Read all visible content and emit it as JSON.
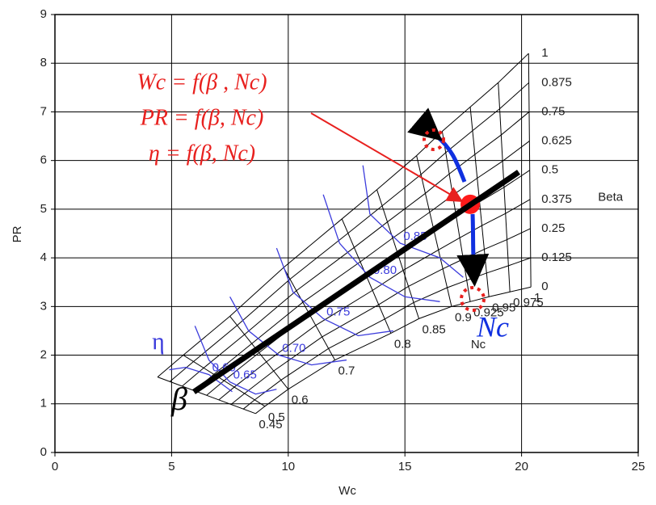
{
  "chart_data": {
    "type": "map",
    "x_label": "Wc",
    "y_label": "PR",
    "xlim": [
      0,
      25
    ],
    "ylim": [
      0,
      9
    ],
    "xticks": [
      0,
      5,
      10,
      15,
      20,
      25
    ],
    "yticks": [
      0,
      1,
      2,
      3,
      4,
      5,
      6,
      7,
      8,
      9
    ],
    "grid": true,
    "speed_label": "Nc",
    "speed_symbol": "Nc",
    "speed_color": "#000000",
    "speed_lines": [
      {
        "name": "0.45",
        "x": [
          8.6,
          4.4
        ],
        "y": [
          0.8,
          1.55
        ]
      },
      {
        "name": "0.5",
        "x": [
          9.0,
          5.5
        ],
        "y": [
          0.95,
          2.0
        ]
      },
      {
        "name": "0.6",
        "x": [
          10.0,
          7.5
        ],
        "y": [
          1.3,
          2.8
        ]
      },
      {
        "name": "0.7",
        "x": [
          12.0,
          9.8
        ],
        "y": [
          1.9,
          3.8
        ]
      },
      {
        "name": "0.8",
        "x": [
          14.4,
          12.3
        ],
        "y": [
          2.45,
          4.8
        ]
      },
      {
        "name": "0.85",
        "x": [
          15.6,
          13.8
        ],
        "y": [
          2.75,
          5.4
        ]
      },
      {
        "name": "0.9",
        "x": [
          17.0,
          15.5
        ],
        "y": [
          3.0,
          6.1
        ]
      },
      {
        "name": "0.925",
        "x": [
          17.8,
          16.6
        ],
        "y": [
          3.1,
          6.6
        ]
      },
      {
        "name": "0.95",
        "x": [
          18.6,
          17.8
        ],
        "y": [
          3.2,
          7.1
        ]
      },
      {
        "name": "0.975",
        "x": [
          19.5,
          19.0
        ],
        "y": [
          3.3,
          7.6
        ]
      },
      {
        "name": "1",
        "x": [
          20.4,
          20.3
        ],
        "y": [
          3.4,
          8.2
        ]
      }
    ],
    "beta_label": "Beta",
    "beta_values": [
      0,
      0.125,
      0.25,
      0.375,
      0.5,
      0.625,
      0.75,
      0.875,
      1
    ],
    "efficiency_symbol": "η",
    "efficiency_color": "#3c3cdc",
    "efficiency_contours": [
      {
        "name": "0.60",
        "x": [
          4.9,
          5.6,
          6.6,
          7.6
        ],
        "y": [
          1.7,
          1.75,
          1.6,
          1.25
        ]
      },
      {
        "name": "0.65",
        "x": [
          6.0,
          6.6,
          7.5,
          8.6,
          9.5
        ],
        "y": [
          2.6,
          1.9,
          1.45,
          1.2,
          1.3
        ]
      },
      {
        "name": "0.70",
        "x": [
          7.5,
          8.3,
          9.6,
          11.0,
          12.5
        ],
        "y": [
          3.2,
          2.5,
          2.0,
          1.8,
          1.9
        ]
      },
      {
        "name": "0.75",
        "x": [
          9.5,
          10.2,
          11.5,
          13.0,
          14.5
        ],
        "y": [
          4.2,
          3.3,
          2.75,
          2.4,
          2.5
        ]
      },
      {
        "name": "0.80",
        "x": [
          11.5,
          12.2,
          13.5,
          15.0,
          16.5
        ],
        "y": [
          5.3,
          4.3,
          3.6,
          3.2,
          3.1
        ]
      },
      {
        "name": "0.85",
        "x": [
          13.2,
          13.5,
          14.8,
          16.5,
          17.5
        ],
        "y": [
          5.9,
          4.9,
          4.3,
          4.0,
          3.6
        ]
      }
    ],
    "operating_point": {
      "x": 17.8,
      "y": 5.1
    },
    "beta_symbol": "β",
    "equations": [
      "Wc = f(β , Nc)",
      "PR = f(β, Nc)",
      "η = f(β, Nc)"
    ]
  }
}
